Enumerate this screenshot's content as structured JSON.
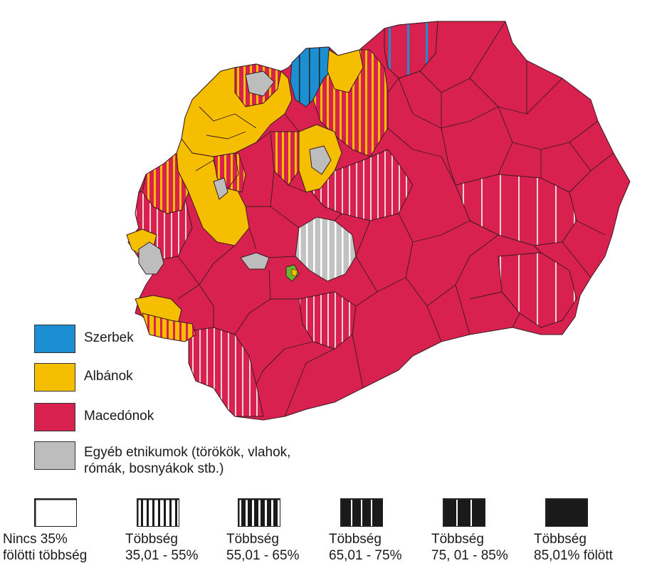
{
  "legend": {
    "groups": [
      {
        "label": "Szerbek",
        "color": "#1c8fd2",
        "icon": "serbs-swatch"
      },
      {
        "label": "Albánok",
        "color": "#f5bf00",
        "icon": "albanians-swatch"
      },
      {
        "label": "Macedónok",
        "color": "#d8214e",
        "icon": "macedonians-swatch"
      },
      {
        "label": "Egyéb etnikumok (törökök, vlahok,\n rómák, bosnyákok stb.)",
        "color": "#bdbdbd",
        "icon": "others-swatch"
      }
    ],
    "scale": [
      {
        "label": "Nincs 35%\nfölötti többség",
        "pattern": "none"
      },
      {
        "label": "Többség\n35,01 - 55%",
        "pattern": "thin-stripes"
      },
      {
        "label": "Többség\n55,01 - 65%",
        "pattern": "medium-stripes"
      },
      {
        "label": "Többség\n65,01 - 75%",
        "pattern": "thick-stripes"
      },
      {
        "label": "Többség\n75, 01 - 85%",
        "pattern": "very-thick-stripes"
      },
      {
        "label": "Többség\n85,01% fölött",
        "pattern": "solid"
      }
    ]
  },
  "colors": {
    "macedonian": "#d8214e",
    "albanian": "#f5bf00",
    "serbian": "#1c8fd2",
    "other": "#bdbdbd",
    "border": "#3a1a22",
    "stripe_light": "#f0d4dc",
    "green_spot": "#6ab42d"
  }
}
